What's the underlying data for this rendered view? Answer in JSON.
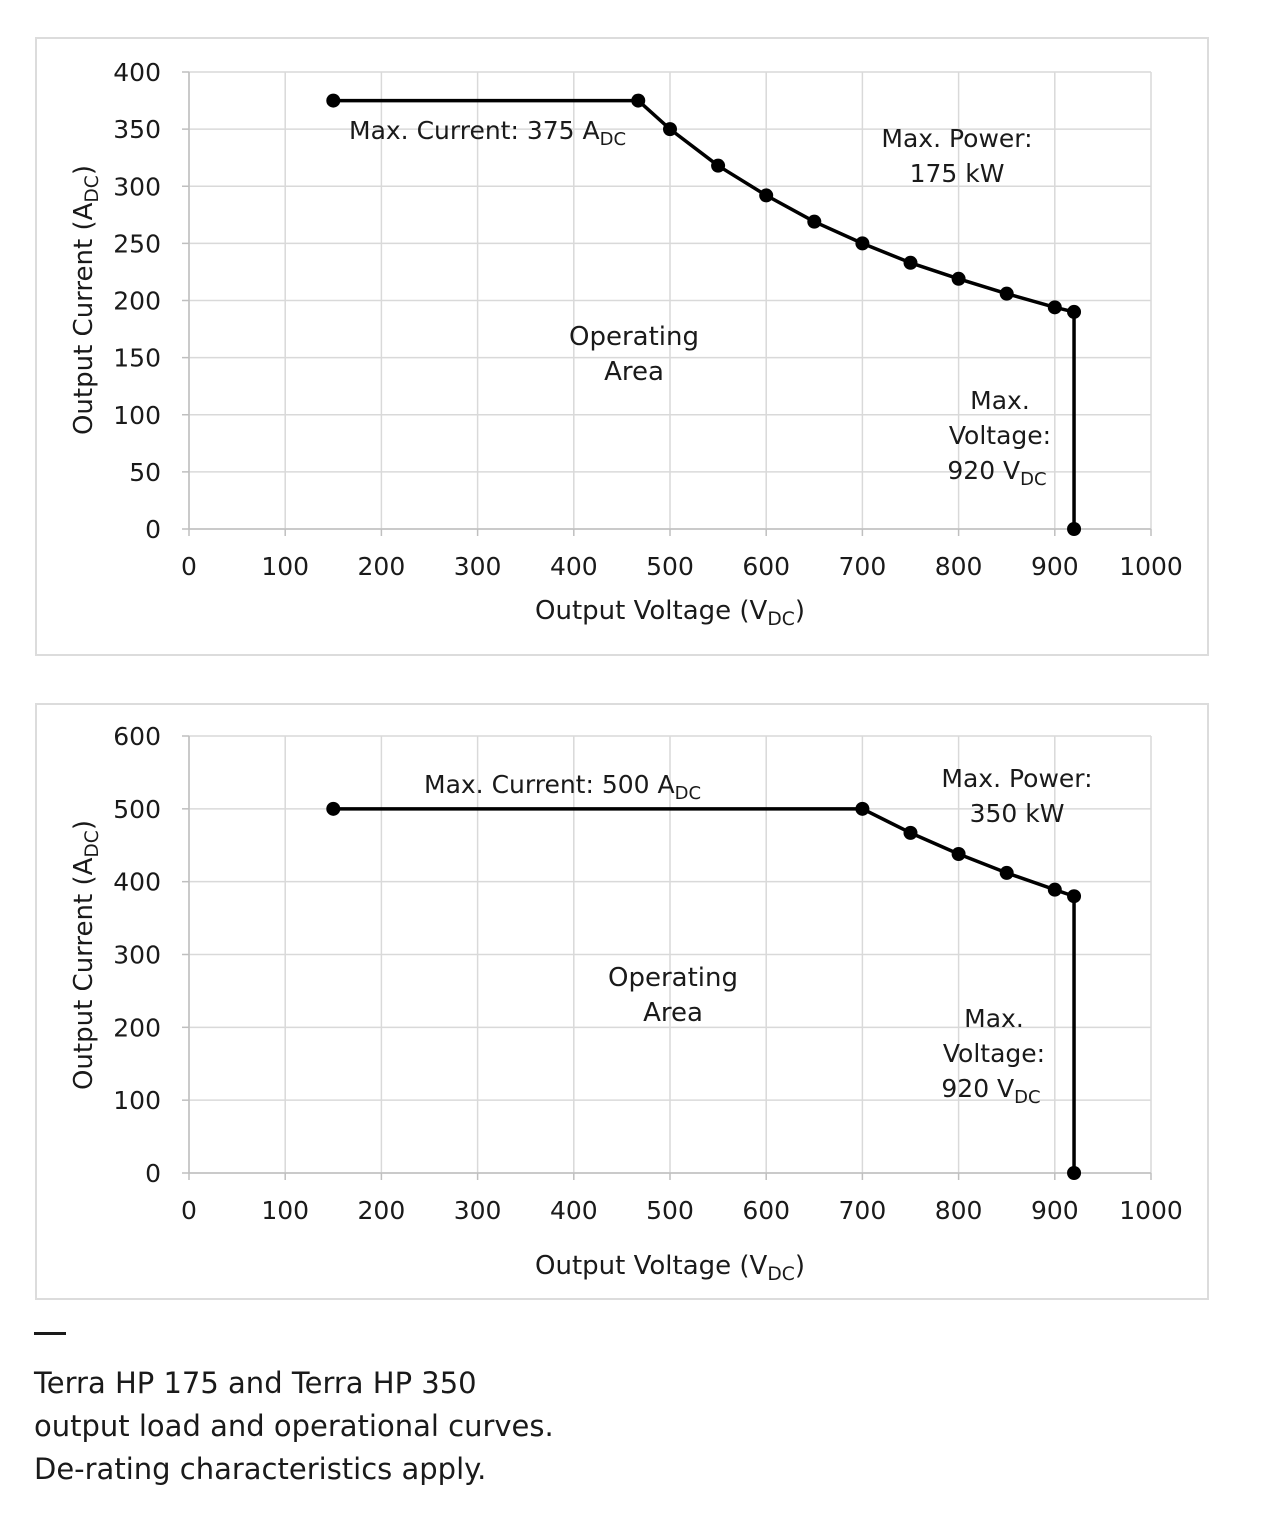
{
  "chart_data": [
    {
      "type": "line",
      "xlabel": "Output Voltage (V",
      "xlabel_sub": "DC",
      "xlabel_end": ")",
      "ylabel": "Output Current (A",
      "ylabel_sub": "DC",
      "ylabel_end": ")",
      "xlim": [
        0,
        1000
      ],
      "ylim": [
        0,
        400
      ],
      "xticks": [
        0,
        100,
        200,
        300,
        400,
        500,
        600,
        700,
        800,
        900,
        1000
      ],
      "yticks": [
        0,
        50,
        100,
        150,
        200,
        250,
        300,
        350,
        400
      ],
      "grid": true,
      "series": [
        {
          "x": [
            150,
            467,
            500,
            550,
            600,
            650,
            700,
            750,
            800,
            850,
            900,
            920,
            920
          ],
          "y": [
            375,
            375,
            350,
            318,
            292,
            269,
            250,
            233,
            219,
            206,
            194,
            190,
            0
          ]
        }
      ],
      "annotations": {
        "max_current": {
          "text": "Max. Current:  375 A",
          "sub": "DC"
        },
        "max_power": [
          "Max. Power:",
          "175 kW"
        ],
        "operating_area": [
          "Operating",
          "Area"
        ],
        "max_voltage": {
          "lines": [
            "Max.",
            "Voltage:"
          ],
          "value": "920 V",
          "sub": "DC"
        }
      }
    },
    {
      "type": "line",
      "xlabel": "Output Voltage (V",
      "xlabel_sub": "DC",
      "xlabel_end": ")",
      "ylabel": "Output Current (A",
      "ylabel_sub": "DC",
      "ylabel_end": ")",
      "xlim": [
        0,
        1000
      ],
      "ylim": [
        0,
        600
      ],
      "xticks": [
        0,
        100,
        200,
        300,
        400,
        500,
        600,
        700,
        800,
        900,
        1000
      ],
      "yticks": [
        0,
        100,
        200,
        300,
        400,
        500,
        600
      ],
      "grid": true,
      "series": [
        {
          "x": [
            150,
            700,
            750,
            800,
            850,
            900,
            920,
            920
          ],
          "y": [
            500,
            500,
            467,
            438,
            412,
            389,
            380,
            0
          ]
        }
      ],
      "annotations": {
        "max_current": {
          "text": "Max. Current:  500 A",
          "sub": "DC"
        },
        "max_power": [
          "Max. Power:",
          "350 kW"
        ],
        "operating_area": [
          "Operating",
          "Area"
        ],
        "max_voltage": {
          "lines": [
            "Max.",
            "Voltage:"
          ],
          "value": "920 V",
          "sub": "DC"
        }
      }
    }
  ],
  "caption": {
    "dash": "—",
    "lines": [
      "Terra HP 175 and Terra HP 350",
      "output load and operational curves.",
      "De-rating characteristics apply."
    ]
  }
}
